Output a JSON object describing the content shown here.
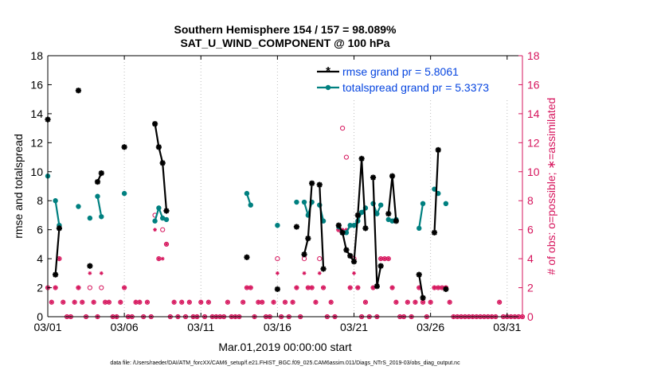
{
  "chart_data": {
    "type": "line",
    "title_line1": "Southern Hemisphere 154 / 157 = 98.089%",
    "title_line2": "SAT_U_WIND_COMPONENT @ 100 hPa",
    "xlabel": "Mar.01,2019 00:00:00 start",
    "ylabel_left": "rmse and totalspread",
    "ylabel_right": "# of obs: o=possible; ∗=assimilated",
    "footnote": "data file: /Users/raeder/DAI/ATM_forcXX/CAM6_setup/f.e21.FHIST_BGC.f09_025.CAM6assim.011/Diags_NTrS_2019-03/obs_diag_output.nc",
    "xlim": [
      1,
      32
    ],
    "ylim": [
      0,
      18
    ],
    "ylim_right": [
      0,
      18
    ],
    "xticks": [
      1,
      6,
      11,
      16,
      21,
      26,
      31
    ],
    "xtick_labels": [
      "03/01",
      "03/06",
      "03/11",
      "03/16",
      "03/21",
      "03/26",
      "03/31"
    ],
    "yticks": [
      0,
      2,
      4,
      6,
      8,
      10,
      12,
      14,
      16,
      18
    ],
    "ytick_labels": [
      "0",
      "2",
      "4",
      "6",
      "8",
      "10",
      "12",
      "14",
      "16",
      "18"
    ],
    "yticks_right": [
      0,
      2,
      4,
      6,
      8,
      10,
      12,
      14,
      16,
      18
    ],
    "ytick_labels_right": [
      "0",
      "2",
      "4",
      "6",
      "8",
      "10",
      "12",
      "14",
      "16",
      "18"
    ],
    "colors": {
      "rmse": "#000000",
      "spread": "#008080",
      "obs": "#d6145c",
      "legend_text": "#0645e0",
      "axis": "#000000"
    },
    "legend_rmse": "rmse grand pr = 5.8061",
    "legend_spread": "totalspread grand pr = 5.3373",
    "series": [
      {
        "name": "rmse",
        "segments": [
          [
            [
              1.0,
              13.6
            ]
          ],
          [
            [
              1.5,
              2.9
            ],
            [
              1.75,
              6.1
            ]
          ],
          [
            [
              3.0,
              15.6
            ]
          ],
          [
            [
              3.75,
              3.5
            ]
          ],
          [
            [
              4.25,
              9.3
            ],
            [
              4.5,
              9.9
            ]
          ],
          [
            [
              6.0,
              11.7
            ]
          ],
          [
            [
              8.0,
              13.3
            ],
            [
              8.25,
              11.7
            ],
            [
              8.5,
              10.6
            ],
            [
              8.75,
              7.3
            ]
          ],
          [
            [
              14.0,
              4.1
            ]
          ],
          [
            [
              16.0,
              1.9
            ]
          ],
          [
            [
              17.25,
              6.2
            ]
          ],
          [
            [
              17.75,
              4.3
            ],
            [
              18.0,
              5.4
            ],
            [
              18.25,
              9.2
            ]
          ],
          [
            [
              18.75,
              9.1
            ],
            [
              19.0,
              3.3
            ]
          ],
          [
            [
              20.0,
              6.3
            ],
            [
              20.25,
              5.8
            ],
            [
              20.5,
              4.6
            ],
            [
              20.75,
              4.2
            ],
            [
              21.0,
              3.8
            ],
            [
              21.25,
              7.0
            ],
            [
              21.5,
              10.9
            ],
            [
              21.75,
              6.1
            ]
          ],
          [
            [
              22.25,
              9.6
            ],
            [
              22.5,
              2.1
            ],
            [
              22.75,
              3.5
            ]
          ],
          [
            [
              23.25,
              7.1
            ],
            [
              23.5,
              9.7
            ],
            [
              23.75,
              6.6
            ]
          ],
          [
            [
              25.25,
              2.9
            ],
            [
              25.5,
              1.3
            ]
          ],
          [
            [
              26.25,
              5.8
            ],
            [
              26.5,
              11.5
            ]
          ],
          [
            [
              27.0,
              1.9
            ]
          ]
        ]
      },
      {
        "name": "totalspread",
        "segments": [
          [
            [
              1.0,
              9.7
            ]
          ],
          [
            [
              1.5,
              8.0
            ],
            [
              1.75,
              6.3
            ]
          ],
          [
            [
              3.0,
              7.6
            ]
          ],
          [
            [
              3.75,
              6.8
            ]
          ],
          [
            [
              4.25,
              8.3
            ],
            [
              4.5,
              6.9
            ]
          ],
          [
            [
              6.0,
              8.5
            ]
          ],
          [
            [
              8.0,
              6.6
            ],
            [
              8.25,
              7.5
            ],
            [
              8.5,
              6.8
            ],
            [
              8.75,
              6.7
            ]
          ],
          [
            [
              14.0,
              8.5
            ],
            [
              14.25,
              7.7
            ]
          ],
          [
            [
              16.0,
              6.3
            ]
          ],
          [
            [
              17.25,
              7.9
            ]
          ],
          [
            [
              17.75,
              7.9
            ],
            [
              18.0,
              7.0
            ],
            [
              18.25,
              7.9
            ]
          ],
          [
            [
              18.75,
              7.7
            ],
            [
              19.0,
              6.6
            ]
          ],
          [
            [
              20.0,
              6.2
            ],
            [
              20.25,
              5.8
            ],
            [
              20.5,
              5.8
            ],
            [
              20.75,
              6.3
            ],
            [
              21.0,
              6.3
            ],
            [
              21.25,
              6.6
            ],
            [
              21.5,
              7.2
            ],
            [
              21.75,
              7.5
            ]
          ],
          [
            [
              22.25,
              7.8
            ],
            [
              22.5,
              7.1
            ],
            [
              22.75,
              7.7
            ]
          ],
          [
            [
              23.25,
              6.7
            ],
            [
              23.5,
              6.6
            ],
            [
              23.75,
              6.7
            ]
          ],
          [
            [
              25.25,
              6.1
            ],
            [
              25.5,
              7.8
            ]
          ],
          [
            [
              26.25,
              8.8
            ],
            [
              26.5,
              8.5
            ]
          ],
          [
            [
              27.0,
              7.8
            ]
          ]
        ]
      }
    ],
    "obs_possible": [
      [
        1.0,
        2
      ],
      [
        1.25,
        1
      ],
      [
        1.5,
        2
      ],
      [
        1.75,
        4
      ],
      [
        2.0,
        1
      ],
      [
        2.25,
        0
      ],
      [
        2.5,
        0
      ],
      [
        2.75,
        1
      ],
      [
        3.0,
        2
      ],
      [
        3.25,
        1
      ],
      [
        3.5,
        0
      ],
      [
        3.75,
        2
      ],
      [
        4.0,
        1
      ],
      [
        4.25,
        0
      ],
      [
        4.5,
        2
      ],
      [
        4.75,
        1
      ],
      [
        5.0,
        1
      ],
      [
        5.25,
        0
      ],
      [
        5.5,
        0
      ],
      [
        5.75,
        1
      ],
      [
        6.0,
        2
      ],
      [
        6.25,
        0
      ],
      [
        6.5,
        0
      ],
      [
        6.75,
        1
      ],
      [
        7.0,
        1
      ],
      [
        7.25,
        0
      ],
      [
        7.5,
        1
      ],
      [
        7.75,
        0
      ],
      [
        8.0,
        7
      ],
      [
        8.25,
        4
      ],
      [
        8.5,
        6
      ],
      [
        8.75,
        5
      ],
      [
        9.0,
        0
      ],
      [
        9.25,
        1
      ],
      [
        9.5,
        0
      ],
      [
        9.75,
        1
      ],
      [
        10.0,
        0
      ],
      [
        10.25,
        1
      ],
      [
        10.5,
        0
      ],
      [
        10.75,
        0
      ],
      [
        11.0,
        1
      ],
      [
        11.25,
        0
      ],
      [
        11.5,
        1
      ],
      [
        11.75,
        0
      ],
      [
        12.0,
        0
      ],
      [
        12.25,
        0
      ],
      [
        12.5,
        0
      ],
      [
        12.75,
        1
      ],
      [
        13.0,
        0
      ],
      [
        13.25,
        0
      ],
      [
        13.5,
        0
      ],
      [
        13.75,
        1
      ],
      [
        14.0,
        2
      ],
      [
        14.25,
        2
      ],
      [
        14.5,
        0
      ],
      [
        14.75,
        1
      ],
      [
        15.0,
        1
      ],
      [
        15.25,
        0
      ],
      [
        15.5,
        0
      ],
      [
        15.75,
        1
      ],
      [
        16.0,
        4
      ],
      [
        16.25,
        0
      ],
      [
        16.5,
        1
      ],
      [
        16.75,
        0
      ],
      [
        17.0,
        1
      ],
      [
        17.25,
        2
      ],
      [
        17.5,
        0
      ],
      [
        17.75,
        4
      ],
      [
        18.0,
        2
      ],
      [
        18.25,
        2
      ],
      [
        18.5,
        1
      ],
      [
        18.75,
        4
      ],
      [
        19.0,
        2
      ],
      [
        19.25,
        0
      ],
      [
        19.5,
        1
      ],
      [
        19.75,
        0
      ],
      [
        20.0,
        6
      ],
      [
        20.25,
        13
      ],
      [
        20.5,
        11
      ],
      [
        20.75,
        2
      ],
      [
        21.0,
        4
      ],
      [
        21.25,
        2
      ],
      [
        21.5,
        0
      ],
      [
        21.75,
        1
      ],
      [
        22.0,
        0
      ],
      [
        22.25,
        2
      ],
      [
        22.5,
        0
      ],
      [
        22.75,
        4
      ],
      [
        23.0,
        4
      ],
      [
        23.25,
        4
      ],
      [
        23.5,
        2
      ],
      [
        23.75,
        1
      ],
      [
        24.0,
        0
      ],
      [
        24.25,
        0
      ],
      [
        24.5,
        1
      ],
      [
        24.75,
        0
      ],
      [
        25.0,
        1
      ],
      [
        25.25,
        2
      ],
      [
        25.5,
        1
      ],
      [
        25.75,
        0
      ],
      [
        26.0,
        1
      ],
      [
        26.25,
        2
      ],
      [
        26.5,
        2
      ],
      [
        26.75,
        2
      ],
      [
        27.0,
        2
      ],
      [
        27.25,
        1
      ],
      [
        27.5,
        0
      ],
      [
        27.75,
        0
      ],
      [
        28.0,
        0
      ],
      [
        28.25,
        0
      ],
      [
        28.5,
        0
      ],
      [
        28.75,
        0
      ],
      [
        29.0,
        0
      ],
      [
        29.25,
        0
      ],
      [
        29.5,
        0
      ],
      [
        29.75,
        0
      ],
      [
        30.0,
        0
      ],
      [
        30.25,
        0
      ],
      [
        30.5,
        1
      ],
      [
        30.75,
        0
      ],
      [
        31.0,
        0
      ],
      [
        31.25,
        0
      ],
      [
        31.5,
        0
      ],
      [
        31.75,
        0
      ],
      [
        32.0,
        0
      ]
    ],
    "obs_assimilated": [
      [
        1.0,
        2
      ],
      [
        1.25,
        1
      ],
      [
        1.5,
        2
      ],
      [
        1.75,
        4
      ],
      [
        2.0,
        1
      ],
      [
        2.25,
        0
      ],
      [
        2.5,
        0
      ],
      [
        2.75,
        1
      ],
      [
        3.0,
        2
      ],
      [
        3.25,
        1
      ],
      [
        3.5,
        0
      ],
      [
        3.75,
        3
      ],
      [
        4.0,
        1
      ],
      [
        4.25,
        0
      ],
      [
        4.5,
        3
      ],
      [
        4.75,
        1
      ],
      [
        5.0,
        1
      ],
      [
        5.25,
        0
      ],
      [
        5.5,
        0
      ],
      [
        5.75,
        1
      ],
      [
        6.0,
        2
      ],
      [
        6.25,
        0
      ],
      [
        6.5,
        0
      ],
      [
        6.75,
        1
      ],
      [
        7.0,
        1
      ],
      [
        7.25,
        0
      ],
      [
        7.5,
        1
      ],
      [
        7.75,
        0
      ],
      [
        8.0,
        6
      ],
      [
        8.25,
        4
      ],
      [
        8.5,
        4
      ],
      [
        8.75,
        5
      ],
      [
        9.0,
        0
      ],
      [
        9.25,
        1
      ],
      [
        9.5,
        0
      ],
      [
        9.75,
        1
      ],
      [
        10.0,
        0
      ],
      [
        10.25,
        1
      ],
      [
        10.5,
        0
      ],
      [
        10.75,
        0
      ],
      [
        11.0,
        1
      ],
      [
        11.25,
        0
      ],
      [
        11.5,
        1
      ],
      [
        11.75,
        0
      ],
      [
        12.0,
        0
      ],
      [
        12.25,
        0
      ],
      [
        12.5,
        0
      ],
      [
        12.75,
        1
      ],
      [
        13.0,
        0
      ],
      [
        13.25,
        0
      ],
      [
        13.5,
        0
      ],
      [
        13.75,
        1
      ],
      [
        14.0,
        2
      ],
      [
        14.25,
        2
      ],
      [
        14.5,
        0
      ],
      [
        14.75,
        1
      ],
      [
        15.0,
        1
      ],
      [
        15.25,
        0
      ],
      [
        15.5,
        0
      ],
      [
        15.75,
        1
      ],
      [
        16.0,
        3
      ],
      [
        16.25,
        0
      ],
      [
        16.5,
        1
      ],
      [
        16.75,
        0
      ],
      [
        17.0,
        1
      ],
      [
        17.25,
        2
      ],
      [
        17.5,
        0
      ],
      [
        17.75,
        3
      ],
      [
        18.0,
        2
      ],
      [
        18.25,
        2
      ],
      [
        18.5,
        1
      ],
      [
        18.75,
        3
      ],
      [
        19.0,
        2
      ],
      [
        19.25,
        0
      ],
      [
        19.5,
        1
      ],
      [
        19.75,
        0
      ],
      [
        20.0,
        6
      ],
      [
        20.25,
        6
      ],
      [
        20.5,
        6
      ],
      [
        20.75,
        2
      ],
      [
        21.0,
        3
      ],
      [
        21.25,
        2
      ],
      [
        21.5,
        0
      ],
      [
        21.75,
        1
      ],
      [
        22.0,
        0
      ],
      [
        22.25,
        2
      ],
      [
        22.5,
        0
      ],
      [
        22.75,
        4
      ],
      [
        23.0,
        4
      ],
      [
        23.25,
        4
      ],
      [
        23.5,
        2
      ],
      [
        23.75,
        1
      ],
      [
        24.0,
        0
      ],
      [
        24.25,
        0
      ],
      [
        24.5,
        1
      ],
      [
        24.75,
        0
      ],
      [
        25.0,
        1
      ],
      [
        25.25,
        2
      ],
      [
        25.5,
        1
      ],
      [
        25.75,
        0
      ],
      [
        26.0,
        1
      ],
      [
        26.25,
        2
      ],
      [
        26.5,
        2
      ],
      [
        26.75,
        2
      ],
      [
        27.0,
        2
      ],
      [
        27.25,
        1
      ],
      [
        27.5,
        0
      ],
      [
        27.75,
        0
      ],
      [
        28.0,
        0
      ],
      [
        28.25,
        0
      ],
      [
        28.5,
        0
      ],
      [
        28.75,
        0
      ],
      [
        29.0,
        0
      ],
      [
        29.25,
        0
      ],
      [
        29.5,
        0
      ],
      [
        29.75,
        0
      ],
      [
        30.0,
        0
      ],
      [
        30.25,
        0
      ],
      [
        30.5,
        1
      ],
      [
        30.75,
        0
      ],
      [
        31.0,
        0
      ],
      [
        31.25,
        0
      ],
      [
        31.5,
        0
      ],
      [
        31.75,
        0
      ],
      [
        32.0,
        0
      ]
    ]
  }
}
